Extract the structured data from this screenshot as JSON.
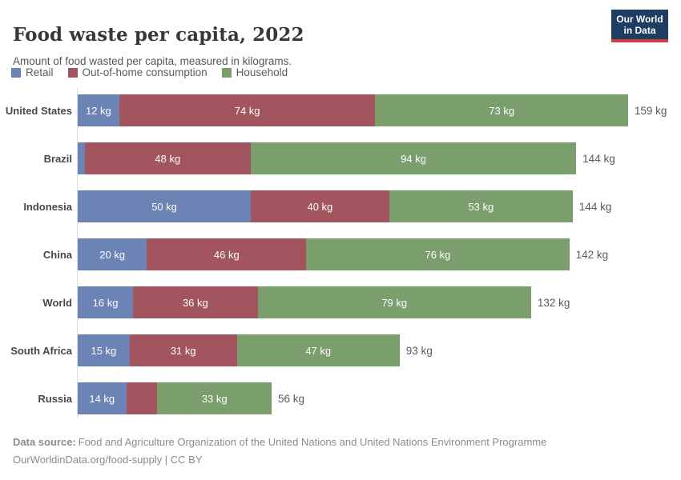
{
  "header": {
    "title": "Food waste per capita, 2022",
    "subtitle": "Amount of food wasted per capita, measured in kilograms.",
    "logo": {
      "line1": "Our World",
      "line2": "in Data"
    }
  },
  "legend": [
    {
      "label": "Retail",
      "color": "#6c84b5"
    },
    {
      "label": "Out-of-home consumption",
      "color": "#a2555f"
    },
    {
      "label": "Household",
      "color": "#7b9e6d"
    }
  ],
  "colors": {
    "retail": "#6c84b5",
    "out_of_home_consumption": "#a2555f",
    "household": "#7b9e6d",
    "logo_background": "#1d3d63",
    "logo_stripe": "#d93a3d",
    "axis_line": "#dcdcdc"
  },
  "chart_data": {
    "type": "bar",
    "stacked": true,
    "orientation": "horizontal",
    "unit": "kg",
    "title": "Food waste per capita, 2022",
    "subtitle": "Amount of food wasted per capita, measured in kilograms.",
    "series_names": [
      "Retail",
      "Out-of-home consumption",
      "Household"
    ],
    "categories": [
      "United States",
      "Brazil",
      "Indonesia",
      "China",
      "World",
      "South Africa",
      "Russia"
    ],
    "xmax_kg": 159,
    "legend_position": "top",
    "grid": false,
    "rows": [
      {
        "country": "United States",
        "segments": [
          {
            "name": "Retail",
            "value": 12,
            "label": "12 kg"
          },
          {
            "name": "Out-of-home consumption",
            "value": 74,
            "label": "74 kg"
          },
          {
            "name": "Household",
            "value": 73,
            "label": "73 kg"
          }
        ],
        "total_label": "159 kg"
      },
      {
        "country": "Brazil",
        "segments": [
          {
            "name": "Retail",
            "value": 2,
            "label": ""
          },
          {
            "name": "Out-of-home consumption",
            "value": 48,
            "label": "48 kg"
          },
          {
            "name": "Household",
            "value": 94,
            "label": "94 kg"
          }
        ],
        "total_label": "144 kg"
      },
      {
        "country": "Indonesia",
        "segments": [
          {
            "name": "Retail",
            "value": 50,
            "label": "50 kg"
          },
          {
            "name": "Out-of-home consumption",
            "value": 40,
            "label": "40 kg"
          },
          {
            "name": "Household",
            "value": 53,
            "label": "53 kg"
          }
        ],
        "total_label": "144 kg"
      },
      {
        "country": "China",
        "segments": [
          {
            "name": "Retail",
            "value": 20,
            "label": "20 kg"
          },
          {
            "name": "Out-of-home consumption",
            "value": 46,
            "label": "46 kg"
          },
          {
            "name": "Household",
            "value": 76,
            "label": "76 kg"
          }
        ],
        "total_label": "142 kg"
      },
      {
        "country": "World",
        "segments": [
          {
            "name": "Retail",
            "value": 16,
            "label": "16 kg"
          },
          {
            "name": "Out-of-home consumption",
            "value": 36,
            "label": "36 kg"
          },
          {
            "name": "Household",
            "value": 79,
            "label": "79 kg"
          }
        ],
        "total_label": "132 kg"
      },
      {
        "country": "South Africa",
        "segments": [
          {
            "name": "Retail",
            "value": 15,
            "label": "15 kg"
          },
          {
            "name": "Out-of-home consumption",
            "value": 31,
            "label": "31 kg"
          },
          {
            "name": "Household",
            "value": 47,
            "label": "47 kg"
          }
        ],
        "total_label": "93 kg"
      },
      {
        "country": "Russia",
        "segments": [
          {
            "name": "Retail",
            "value": 14,
            "label": "14 kg"
          },
          {
            "name": "Out-of-home consumption",
            "value": 9,
            "label": ""
          },
          {
            "name": "Household",
            "value": 33,
            "label": "33 kg"
          }
        ],
        "total_label": "56 kg"
      }
    ]
  },
  "footer": {
    "source_prefix": "Data source:",
    "source_text": "Food and Agriculture Organization of the United Nations and United Nations Environment Programme",
    "link_line": "OurWorldinData.org/food-supply | CC BY"
  }
}
